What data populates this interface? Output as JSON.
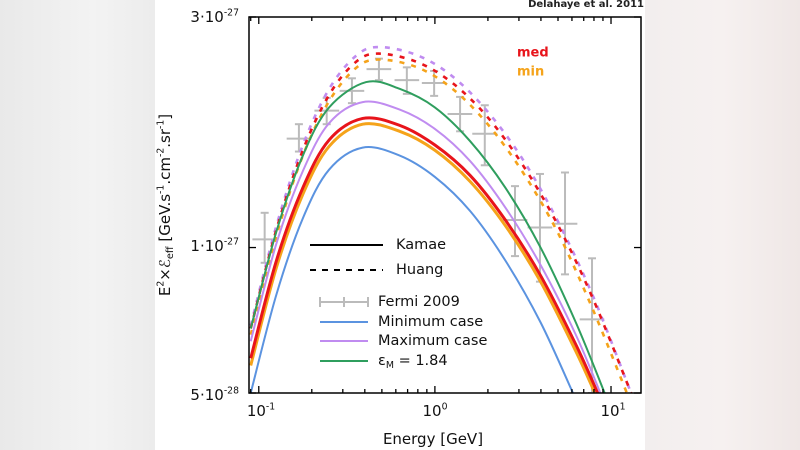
{
  "credit": "Delahaye et al. 2011",
  "chart_data": {
    "type": "line",
    "xscale": "log",
    "yscale": "log",
    "xlim": [
      0.088,
      14.8
    ],
    "ylim": [
      5e-28,
      3e-27
    ],
    "xlabel": "Energy [GeV]",
    "ylabel": {
      "prefix": "E",
      "sup1": "2",
      "times": "×",
      "script": "ℰ",
      "sub": "eff",
      "units": " [GeV.s",
      "s_exp": "-1",
      "cm": ".cm",
      "cm_exp": "-2",
      "sr": ".sr",
      "sr_exp": "-1",
      "close": "]"
    },
    "xticks": [
      {
        "value": 0.1,
        "base": "10",
        "exp": "-1"
      },
      {
        "value": 1,
        "base": "10",
        "exp": "0"
      },
      {
        "value": 10,
        "base": "10",
        "exp": "1"
      }
    ],
    "yticks": [
      {
        "value": 3e-27,
        "base": "3·10",
        "exp": "-27"
      },
      {
        "value": 1e-27,
        "base": "1·10",
        "exp": "-27"
      },
      {
        "value": 5e-28,
        "base": "5·10",
        "exp": "-28"
      }
    ],
    "grid": false,
    "annotations": [
      {
        "text": "med",
        "color": "#e8141b"
      },
      {
        "text": "min",
        "color": "#f5a31a"
      }
    ],
    "legend": {
      "placement": "bottom-left",
      "line_styles": [
        {
          "label": "Kamae",
          "style": "solid"
        },
        {
          "label": "Huang",
          "style": "dashed"
        }
      ],
      "entries": [
        {
          "label": "Fermi 2009",
          "color": "#bbbbbb",
          "marker": "errorbar"
        },
        {
          "label": "Minimum case",
          "color": "#5b93e0"
        },
        {
          "label": "Maximum case",
          "color": "#c08cf0"
        },
        {
          "label_main": "ε",
          "label_sub": "M",
          "label_rest": " = 1.84",
          "color": "#2f9e5e"
        }
      ]
    },
    "series": [
      {
        "name": "Minimum case",
        "model": "Kamae",
        "color": "#5b93e0",
        "style": "solid",
        "x": [
          0.09,
          0.126,
          0.178,
          0.251,
          0.389,
          0.631,
          1.0,
          1.585,
          2.512,
          3.981,
          6.08
        ],
        "y": [
          5e-28,
          8e-28,
          1.15e-27,
          1.45e-27,
          1.61e-27,
          1.55e-27,
          1.4e-27,
          1.19e-27,
          9.4e-28,
          7e-28,
          5e-28
        ]
      },
      {
        "name": "med",
        "model": "Kamae",
        "color": "#e8141b",
        "style": "solid",
        "x": [
          0.09,
          0.126,
          0.178,
          0.251,
          0.389,
          0.631,
          1.0,
          1.585,
          2.512,
          3.981,
          6.31,
          8.4
        ],
        "y": [
          5.9e-28,
          9.4e-28,
          1.33e-27,
          1.67e-27,
          1.85e-27,
          1.79e-27,
          1.63e-27,
          1.41e-27,
          1.14e-27,
          8.75e-28,
          6.3e-28,
          5e-28
        ]
      },
      {
        "name": "min",
        "model": "Kamae",
        "color": "#f5a31a",
        "style": "solid",
        "x": [
          0.09,
          0.126,
          0.178,
          0.251,
          0.389,
          0.631,
          1.0,
          1.585,
          2.512,
          3.981,
          6.31,
          8.1
        ],
        "y": [
          5.7e-28,
          9.1e-28,
          1.29e-27,
          1.62e-27,
          1.8e-27,
          1.74e-27,
          1.59e-27,
          1.37e-27,
          1.11e-27,
          8.5e-28,
          6.1e-28,
          5e-28
        ]
      },
      {
        "name": "Maximum case",
        "model": "Kamae",
        "color": "#c08cf0",
        "style": "solid",
        "x": [
          0.09,
          0.126,
          0.178,
          0.251,
          0.389,
          0.631,
          1.0,
          1.585,
          2.512,
          3.981,
          6.31,
          8.7
        ],
        "y": [
          6.4e-28,
          1.02e-27,
          1.44e-27,
          1.81e-27,
          2e-27,
          1.93e-27,
          1.76e-27,
          1.51e-27,
          1.21e-27,
          9.2e-28,
          6.6e-28,
          5e-28
        ]
      },
      {
        "name": "εM = 1.84",
        "model": "Kamae",
        "color": "#2f9e5e",
        "style": "solid",
        "x": [
          0.09,
          0.126,
          0.178,
          0.251,
          0.407,
          0.631,
          1.0,
          1.585,
          2.512,
          3.981,
          6.31,
          9.2
        ],
        "y": [
          6.8e-28,
          1.08e-27,
          1.55e-27,
          1.95e-27,
          2.2e-27,
          2.13e-27,
          1.95e-27,
          1.66e-27,
          1.33e-27,
          1e-27,
          7e-28,
          5e-28
        ]
      },
      {
        "name": "Maximum case",
        "model": "Huang",
        "color": "#c08cf0",
        "style": "dashed",
        "x": [
          0.09,
          0.126,
          0.178,
          0.251,
          0.355,
          0.479,
          0.794,
          1.259,
          1.995,
          3.162,
          5.012,
          7.943,
          13.0
        ],
        "y": [
          6.9e-28,
          1.11e-27,
          1.63e-27,
          2.13e-27,
          2.49e-27,
          2.6e-27,
          2.5e-27,
          2.26e-27,
          1.91e-27,
          1.52e-27,
          1.13e-27,
          7.9e-28,
          5e-28
        ]
      },
      {
        "name": "med",
        "model": "Huang",
        "color": "#e8141b",
        "style": "dashed",
        "x": [
          0.09,
          0.126,
          0.178,
          0.251,
          0.355,
          0.479,
          0.794,
          1.259,
          1.995,
          3.162,
          5.012,
          7.943,
          13.0
        ],
        "y": [
          6.8e-28,
          1.09e-27,
          1.59e-27,
          2.07e-27,
          2.42e-27,
          2.52e-27,
          2.42e-27,
          2.19e-27,
          1.86e-27,
          1.48e-27,
          1.11e-27,
          7.8e-28,
          5e-28
        ]
      },
      {
        "name": "min",
        "model": "Huang",
        "color": "#f5a31a",
        "style": "dashed",
        "x": [
          0.09,
          0.126,
          0.178,
          0.251,
          0.355,
          0.479,
          0.794,
          1.259,
          1.995,
          3.162,
          5.012,
          7.943,
          12.3
        ],
        "y": [
          6.6e-28,
          1.06e-27,
          1.55e-27,
          2.01e-27,
          2.35e-27,
          2.45e-27,
          2.36e-27,
          2.13e-27,
          1.8e-27,
          1.43e-27,
          1.07e-27,
          7.4e-28,
          5e-28
        ]
      }
    ],
    "fermi_2009": {
      "name": "Fermi 2009",
      "color": "#bbbbbb",
      "points": [
        {
          "x": 0.108,
          "xlo": 0.092,
          "xhi": 0.127,
          "y": 1.04e-27,
          "ylo": 9.3e-28,
          "yhi": 1.18e-27
        },
        {
          "x": 0.169,
          "xlo": 0.144,
          "xhi": 0.199,
          "y": 1.68e-27,
          "ylo": 1.58e-27,
          "yhi": 1.8e-27
        },
        {
          "x": 0.243,
          "xlo": 0.207,
          "xhi": 0.286,
          "y": 1.92e-27,
          "ylo": 1.8e-27,
          "yhi": 2.04e-27
        },
        {
          "x": 0.338,
          "xlo": 0.288,
          "xhi": 0.397,
          "y": 2.11e-27,
          "ylo": 1.99e-27,
          "yhi": 2.24e-27
        },
        {
          "x": 0.481,
          "xlo": 0.409,
          "xhi": 0.565,
          "y": 2.34e-27,
          "ylo": 2.22e-27,
          "yhi": 2.46e-27
        },
        {
          "x": 0.693,
          "xlo": 0.59,
          "xhi": 0.814,
          "y": 2.22e-27,
          "ylo": 2.08e-27,
          "yhi": 2.36e-27
        },
        {
          "x": 0.99,
          "xlo": 0.843,
          "xhi": 1.163,
          "y": 2.19e-27,
          "ylo": 2.06e-27,
          "yhi": 2.32e-27
        },
        {
          "x": 1.39,
          "xlo": 1.18,
          "xhi": 1.63,
          "y": 1.89e-27,
          "ylo": 1.74e-27,
          "yhi": 2.05e-27
        },
        {
          "x": 1.92,
          "xlo": 1.63,
          "xhi": 2.26,
          "y": 1.72e-27,
          "ylo": 1.48e-27,
          "yhi": 1.97e-27
        },
        {
          "x": 2.85,
          "xlo": 2.43,
          "xhi": 3.35,
          "y": 1.14e-27,
          "ylo": 9.6e-28,
          "yhi": 1.34e-27
        },
        {
          "x": 3.95,
          "xlo": 3.36,
          "xhi": 4.64,
          "y": 1.1e-27,
          "ylo": 8.5e-28,
          "yhi": 1.42e-27
        },
        {
          "x": 5.48,
          "xlo": 4.66,
          "xhi": 6.44,
          "y": 1.12e-27,
          "ylo": 8.8e-28,
          "yhi": 1.43e-27
        },
        {
          "x": 7.8,
          "xlo": 6.64,
          "xhi": 9.16,
          "y": 7.1e-28,
          "ylo": 5e-28,
          "yhi": 9.5e-28
        }
      ]
    }
  }
}
